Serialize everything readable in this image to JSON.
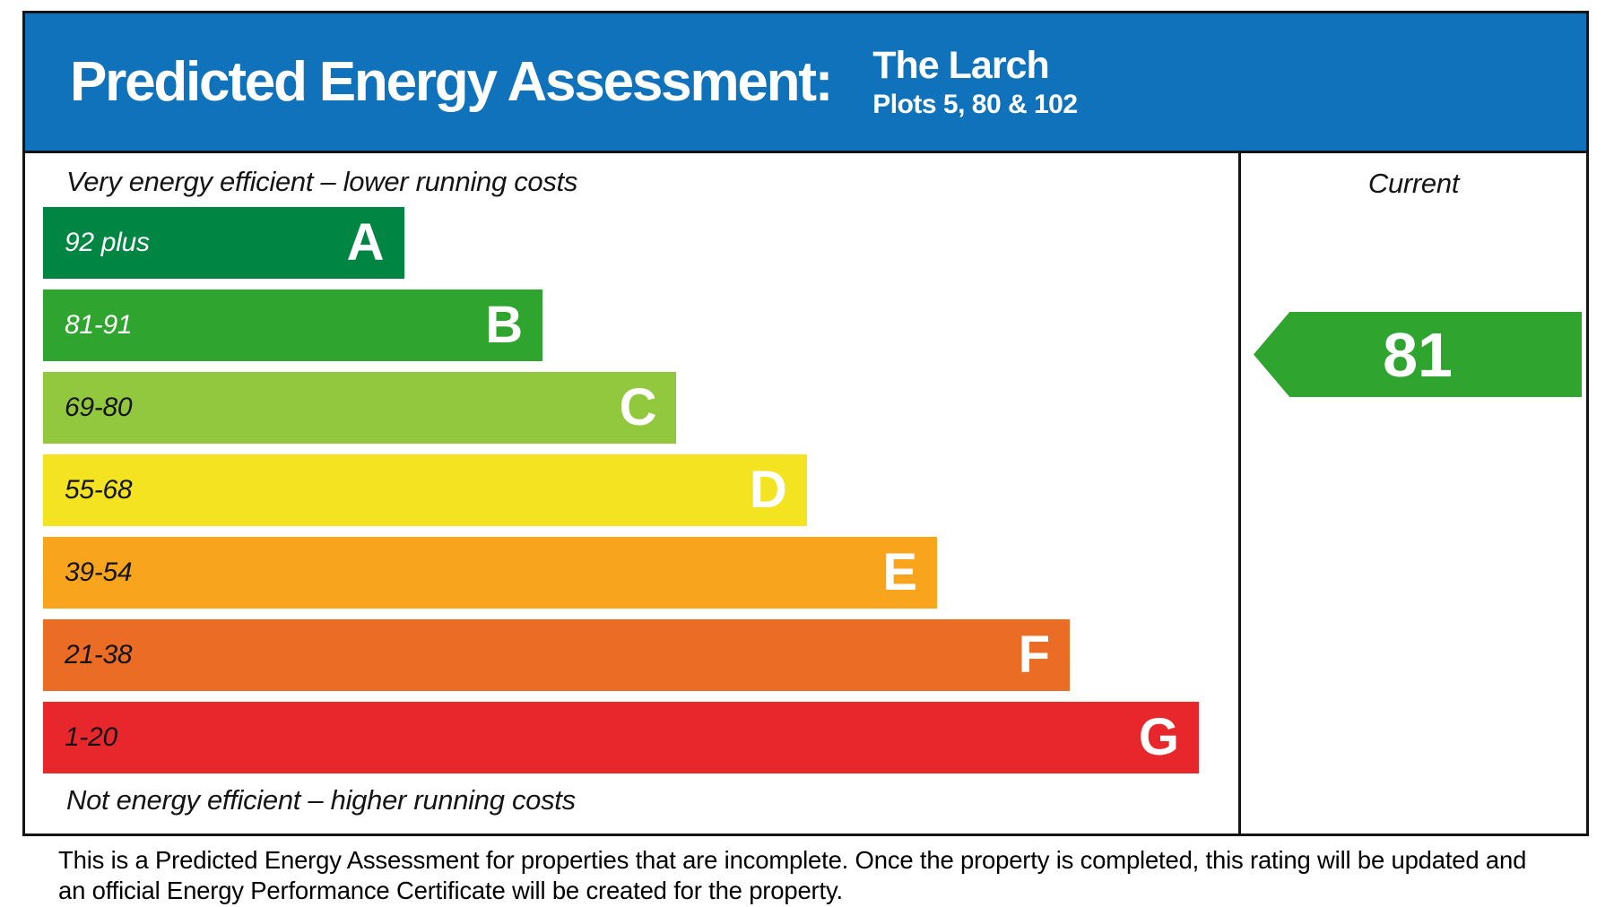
{
  "header": {
    "title": "Predicted Energy Assessment:",
    "property_name": "The Larch",
    "plots": "Plots 5, 80 & 102",
    "background_color": "#1072ba"
  },
  "chart_data": {
    "type": "bar",
    "title": "Predicted Energy Assessment",
    "top_caption": "Very energy efficient – lower running costs",
    "bottom_caption": "Not energy efficient – higher running costs",
    "column_header": "Current",
    "current_rating": {
      "value": 81,
      "band": "B",
      "color": "#2fa42e"
    },
    "bands": [
      {
        "letter": "A",
        "range": "92 plus",
        "color": "#008542",
        "text_color": "#ffffff",
        "width_pct": 30.2
      },
      {
        "letter": "B",
        "range": "81-91",
        "color": "#2fa42e",
        "text_color": "#ffffff",
        "width_pct": 41.8
      },
      {
        "letter": "C",
        "range": "69-80",
        "color": "#92c83e",
        "text_color": "#141414",
        "width_pct": 53.0
      },
      {
        "letter": "D",
        "range": "55-68",
        "color": "#f3e321",
        "text_color": "#141414",
        "width_pct": 63.9
      },
      {
        "letter": "E",
        "range": "39-54",
        "color": "#f8a51d",
        "text_color": "#141414",
        "width_pct": 74.8
      },
      {
        "letter": "F",
        "range": "21-38",
        "color": "#ea6c25",
        "text_color": "#141414",
        "width_pct": 85.9
      },
      {
        "letter": "G",
        "range": "1-20",
        "color": "#e8272d",
        "text_color": "#141414",
        "width_pct": 96.7
      }
    ]
  },
  "footer": {
    "note": "This is a Predicted Energy Assessment for properties that are incomplete. Once the property is completed, this rating will be updated and an official Energy Performance Certificate will be created for the property."
  }
}
